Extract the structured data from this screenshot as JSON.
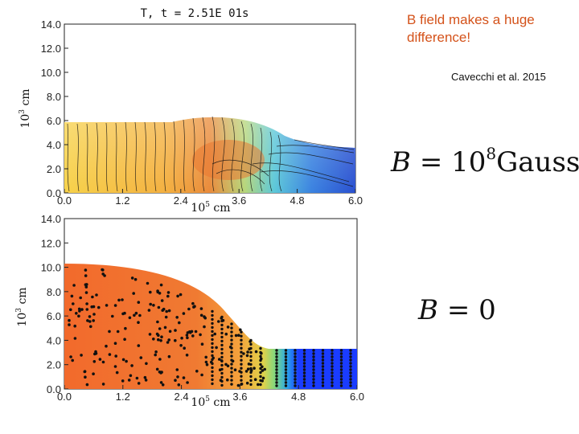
{
  "slide": {
    "heading": "B field makes a huge difference!",
    "citation": "Cavecchi et al. 2015",
    "eq_top": {
      "var": "B",
      "rel": "=",
      "base": "10",
      "exp": "8",
      "unit": "Gauss"
    },
    "eq_bottom": {
      "var": "B",
      "rel": "=",
      "value": "0"
    }
  },
  "top_plot": {
    "title": "T, t = 2.51E  01s",
    "y_unit": "10",
    "y_unit_exp": "3",
    "y_unit_rest": " cm",
    "x_unit": "10",
    "x_unit_exp": "5",
    "x_unit_rest": " cm",
    "y_ticks": [
      "0.0",
      "2.0",
      "4.0",
      "6.0",
      "8.0",
      "10.0",
      "12.0",
      "14.0"
    ],
    "x_ticks": [
      "0.0",
      "1.2",
      "2.4",
      "3.6",
      "4.8",
      "6.0"
    ]
  },
  "bottom_plot": {
    "y_unit": "10",
    "y_unit_exp": "3",
    "y_unit_rest": " cm",
    "x_unit": "10",
    "x_unit_exp": "5",
    "x_unit_rest": " cm",
    "y_ticks": [
      "0.0",
      "2.0",
      "4.0",
      "6.0",
      "8.0",
      "10.0",
      "12.0",
      "14.0"
    ],
    "x_ticks": [
      "0.0",
      "1.2",
      "2.4",
      "3.6",
      "4.8",
      "6.0"
    ]
  },
  "colors": {
    "heading": "#d4521a",
    "hot": "#f0602a",
    "warm": "#f8c040",
    "cool": "#3070e0",
    "cold": "#1a3cff"
  }
}
